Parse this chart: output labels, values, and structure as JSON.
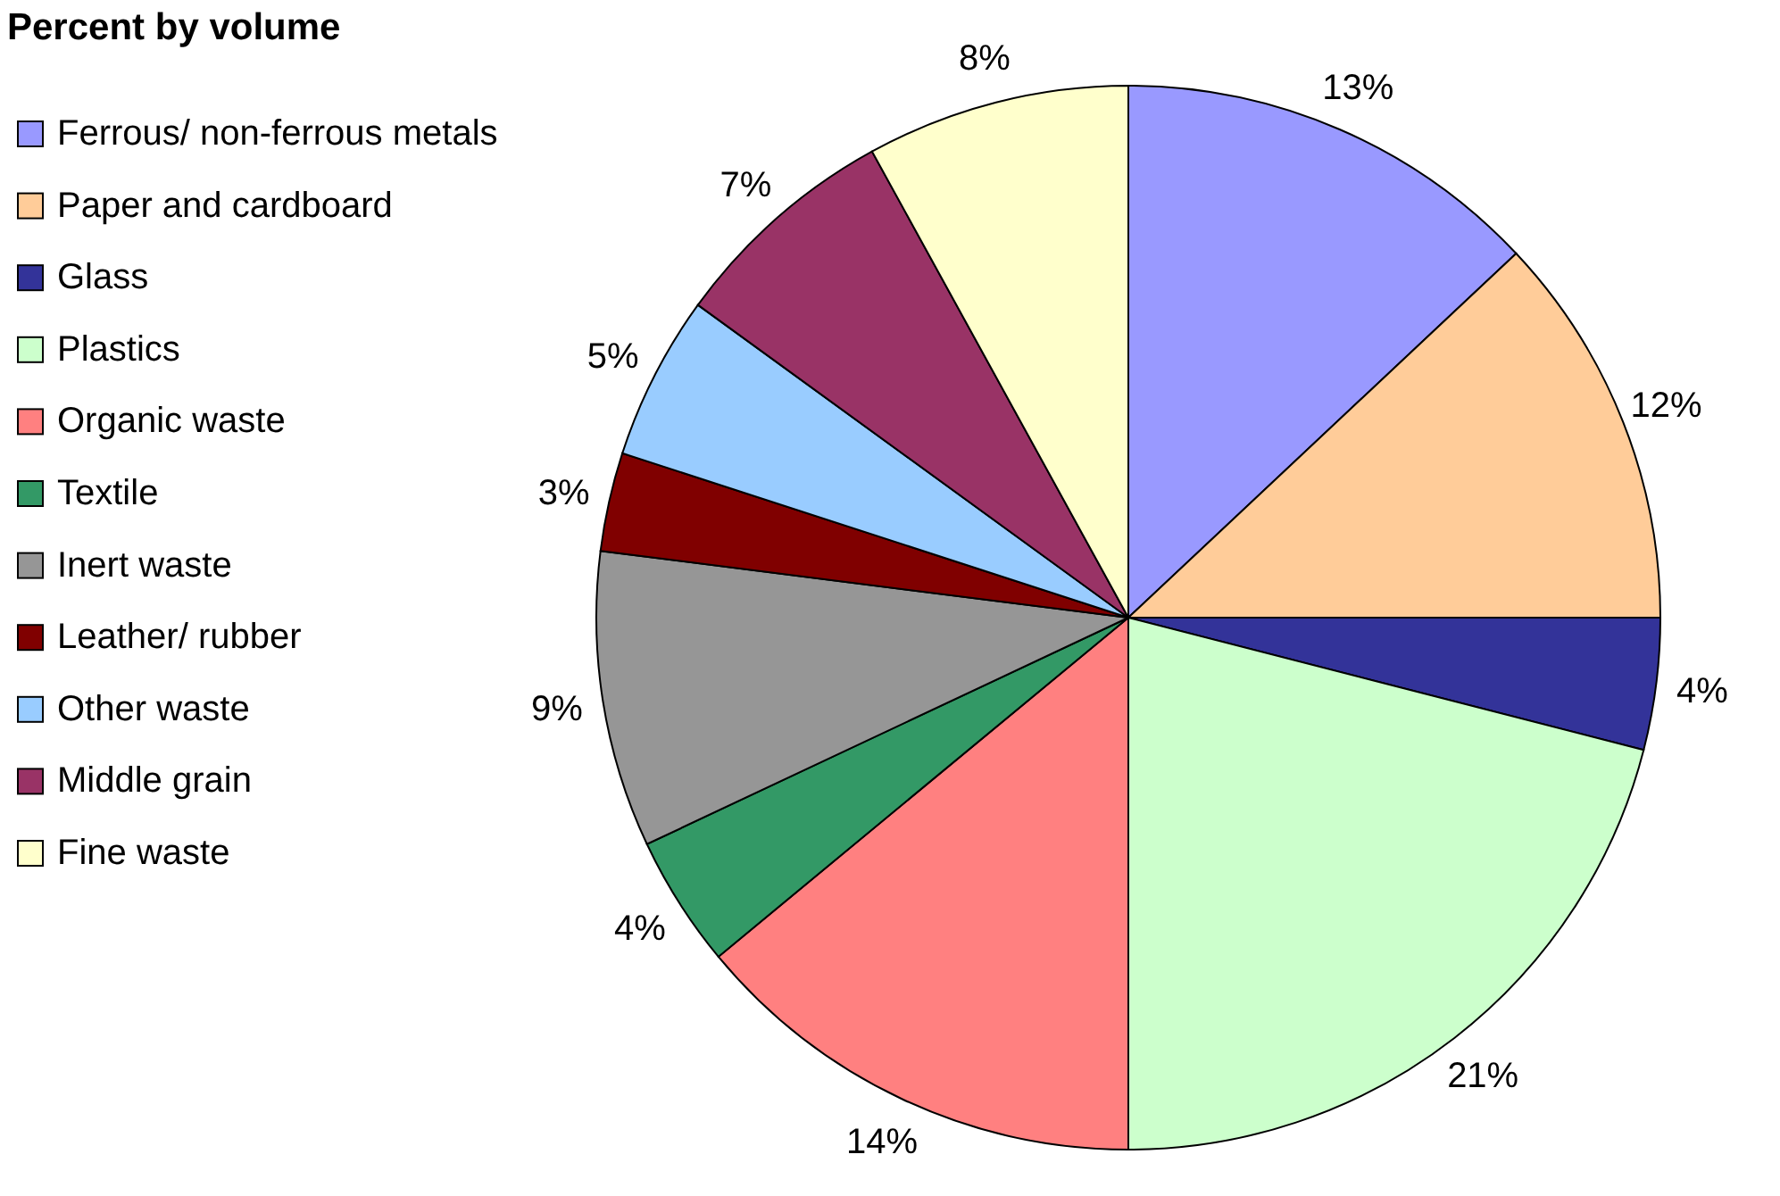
{
  "chart_data": {
    "type": "pie",
    "title": "Percent by volume",
    "categories": [
      "Ferrous/ non-ferrous metals",
      "Paper and cardboard",
      "Glass",
      "Plastics",
      "Organic waste",
      "Textile",
      "Inert waste",
      "Leather/ rubber",
      "Other waste",
      "Middle grain",
      "Fine waste"
    ],
    "values": [
      13,
      12,
      4,
      21,
      14,
      4,
      9,
      3,
      5,
      7,
      8
    ],
    "colors": [
      "#9999ff",
      "#ffcc99",
      "#333399",
      "#ccffcc",
      "#ff8080",
      "#339966",
      "#969696",
      "#800000",
      "#99ccff",
      "#993366",
      "#ffffcc"
    ],
    "value_labels": [
      "13%",
      "12%",
      "4%",
      "21%",
      "14%",
      "4%",
      "9%",
      "3%",
      "5%",
      "7%",
      "8%"
    ],
    "legend": "left"
  }
}
